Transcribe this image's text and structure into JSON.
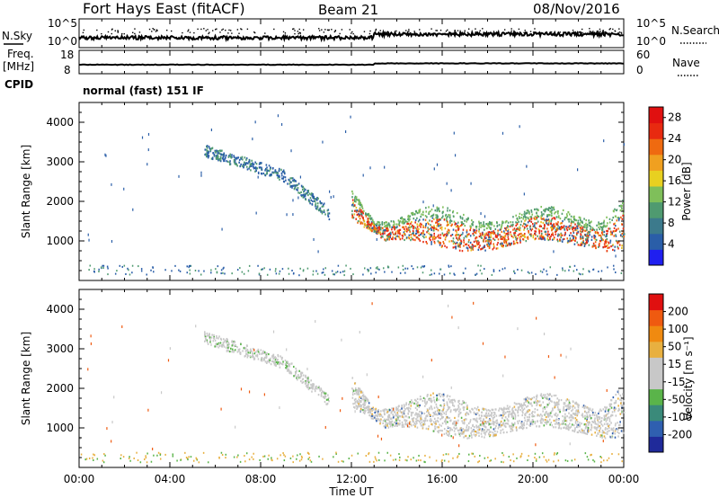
{
  "header": {
    "radar_title": "Fort Hays East (fitACF)",
    "beam": "Beam 21",
    "date": "08/Nov/2016"
  },
  "nsky_panel": {
    "left_label": "N.Sky",
    "right_label": "N.Search",
    "left_ticks": [
      "10^5",
      "10^0"
    ],
    "right_ticks": [
      "10^5",
      "10^0"
    ]
  },
  "freq_panel": {
    "left_label": "Freq.",
    "left_unit": "[MHz]",
    "right_label": "Nave",
    "left_ticks": [
      "18",
      "8"
    ],
    "right_ticks": [
      "60",
      "0"
    ]
  },
  "cpid": {
    "label": "CPID",
    "value": "normal (fast) 151 IF"
  },
  "chart_data": [
    {
      "type": "heatmap",
      "name": "power",
      "ylabel": "Slant Range [km]",
      "xlabel": "Time UT",
      "ylim": [
        0,
        4500
      ],
      "xlim": [
        0,
        24
      ],
      "y_ticks": [
        "1000",
        "2000",
        "3000",
        "4000"
      ],
      "colorbar": {
        "label": "Power [dB]",
        "ticks": [
          "4",
          "8",
          "12",
          "16",
          "20",
          "24",
          "28"
        ],
        "range": [
          0,
          30
        ],
        "colors": [
          "#1f1ff0",
          "#2a5ea8",
          "#3c7a8c",
          "#4f9a70",
          "#7fbf5a",
          "#e8d020",
          "#f0a020",
          "#ef6a10",
          "#e82a10",
          "#e01010"
        ]
      }
    },
    {
      "type": "heatmap",
      "name": "velocity",
      "ylabel": "Slant Range [km]",
      "xlabel": "Time UT",
      "ylim": [
        0,
        4500
      ],
      "xlim": [
        0,
        24
      ],
      "y_ticks": [
        "1000",
        "2000",
        "3000",
        "4000"
      ],
      "colorbar": {
        "label": "Velocity [m s⁻¹]",
        "ticks": [
          "200",
          "100",
          "50",
          "15",
          "-15",
          "-50",
          "-100",
          "-200"
        ],
        "colors": [
          "#1f2a9a",
          "#2f5fb0",
          "#3a8a7a",
          "#5ab44a",
          "#c8c8c8",
          "#c8c8c8",
          "#e8b040",
          "#f08a10",
          "#ef5a10",
          "#e01010"
        ]
      }
    }
  ],
  "x_axis": {
    "ticks": [
      "00:00",
      "04:00",
      "08:00",
      "12:00",
      "16:00",
      "20:00",
      "00:00"
    ],
    "label": "Time UT"
  }
}
